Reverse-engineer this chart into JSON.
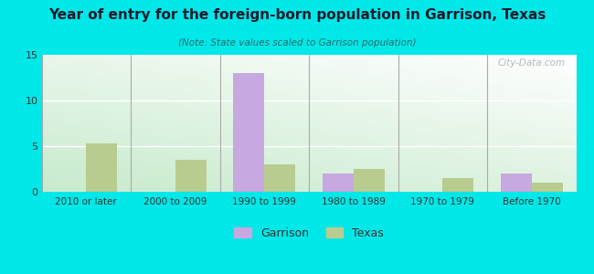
{
  "title": "Year of entry for the foreign-born population in Garrison, Texas",
  "subtitle": "(Note: State values scaled to Garrison population)",
  "categories": [
    "2010 or later",
    "2000 to 2009",
    "1990 to 1999",
    "1980 to 1989",
    "1970 to 1979",
    "Before 1970"
  ],
  "garrison_values": [
    0,
    0,
    13,
    2,
    0,
    2
  ],
  "texas_values": [
    5.3,
    3.5,
    3.0,
    2.5,
    1.5,
    1.0
  ],
  "garrison_color": "#c8a8e0",
  "texas_color": "#b8cc90",
  "background_outer": "#00e8e8",
  "ylim": [
    0,
    15
  ],
  "yticks": [
    0,
    5,
    10,
    15
  ],
  "bar_width": 0.35,
  "legend_labels": [
    "Garrison",
    "Texas"
  ],
  "watermark": "City-Data.com",
  "title_color": "#1a1a2e",
  "subtitle_color": "#2a6a6a",
  "tick_color": "#333333",
  "grid_color": "#ffffff",
  "separator_color": "#aaaaaa",
  "title_fontsize": 11.0,
  "subtitle_fontsize": 7.5
}
